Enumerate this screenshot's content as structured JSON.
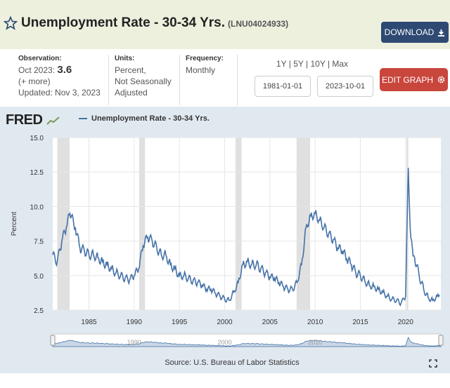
{
  "header": {
    "title": "Unemployment Rate - 30-34 Yrs.",
    "series_id": "(LNU04024933)",
    "download_label": "DOWNLOAD"
  },
  "meta": {
    "observation_label": "Observation:",
    "observation_period": "Oct 2023:",
    "observation_value": "3.6",
    "more_label": "(+ more)",
    "updated": "Updated: Nov 3, 2023",
    "units_label": "Units:",
    "units_line1": "Percent,",
    "units_line2": "Not Seasonally",
    "units_line3": "Adjusted",
    "frequency_label": "Frequency:",
    "frequency_value": "Monthly"
  },
  "controls": {
    "range_1y": "1Y",
    "range_5y": "5Y",
    "range_10y": "10Y",
    "range_max": "Max",
    "sep": "|",
    "start_date": "1981-01-01",
    "end_date": "2023-10-01",
    "edit_label": "EDIT GRAPH"
  },
  "logo": {
    "text": "FRED"
  },
  "source": "Source: U.S. Bureau of Labor Statistics",
  "colors": {
    "series": "#4572a7",
    "recession": "#e0e0e0",
    "panel": "#e1e9f0",
    "download": "#2e4a73",
    "edit": "#c9463d"
  },
  "chart_data": {
    "type": "line",
    "series": [
      {
        "name": "Unemployment Rate - 30-34 Yrs.",
        "x": [
          1981.0,
          1981.5,
          1982.0,
          1982.5,
          1982.9,
          1983.5,
          1984.0,
          1984.5,
          1985.0,
          1985.5,
          1986.0,
          1986.5,
          1987.0,
          1987.5,
          1988.0,
          1988.5,
          1989.0,
          1989.5,
          1990.0,
          1990.5,
          1991.0,
          1991.5,
          1992.0,
          1992.5,
          1993.0,
          1993.5,
          1994.0,
          1994.5,
          1995.0,
          1995.5,
          1996.0,
          1996.5,
          1997.0,
          1997.5,
          1998.0,
          1998.5,
          1999.0,
          1999.5,
          2000.0,
          2000.5,
          2001.0,
          2001.5,
          2002.0,
          2002.5,
          2003.0,
          2003.5,
          2004.0,
          2004.5,
          2005.0,
          2005.5,
          2006.0,
          2006.5,
          2007.0,
          2007.5,
          2008.0,
          2008.5,
          2009.0,
          2009.5,
          2010.0,
          2010.5,
          2011.0,
          2011.5,
          2012.0,
          2012.5,
          2013.0,
          2013.5,
          2014.0,
          2014.5,
          2015.0,
          2015.5,
          2016.0,
          2016.5,
          2017.0,
          2017.5,
          2018.0,
          2018.5,
          2019.0,
          2019.5,
          2020.0,
          2020.3,
          2020.5,
          2020.75,
          2021.0,
          2021.5,
          2022.0,
          2022.5,
          2023.0,
          2023.5,
          2023.75
        ],
        "y": [
          6.5,
          6.0,
          7.5,
          8.5,
          9.5,
          8.5,
          7.0,
          6.8,
          6.5,
          6.5,
          6.3,
          6.0,
          5.8,
          5.5,
          5.2,
          5.0,
          4.8,
          4.7,
          5.0,
          5.5,
          7.2,
          7.8,
          7.5,
          7.0,
          6.5,
          6.5,
          5.8,
          5.5,
          5.0,
          5.0,
          4.8,
          4.6,
          4.5,
          4.3,
          4.0,
          4.0,
          3.7,
          3.5,
          3.3,
          3.2,
          3.8,
          4.5,
          5.8,
          6.0,
          5.8,
          5.8,
          5.5,
          5.2,
          4.9,
          4.8,
          4.5,
          4.2,
          4.0,
          4.0,
          4.5,
          5.8,
          8.5,
          9.3,
          9.5,
          9.0,
          8.5,
          8.0,
          7.6,
          7.0,
          6.8,
          6.2,
          5.8,
          5.2,
          5.0,
          4.6,
          4.3,
          4.2,
          4.0,
          3.8,
          3.5,
          3.3,
          3.2,
          3.0,
          3.5,
          12.8,
          8.5,
          7.0,
          6.3,
          5.0,
          4.0,
          3.4,
          3.2,
          3.5,
          3.6
        ]
      }
    ],
    "recessions": [
      [
        1981.5,
        1982.87
      ],
      [
        1990.55,
        1991.2
      ],
      [
        2001.2,
        2001.87
      ],
      [
        2007.95,
        2009.45
      ],
      [
        2020.1,
        2020.3
      ]
    ],
    "xlim": [
      1981.0,
      2023.9
    ],
    "ylim": [
      2.5,
      15.0
    ],
    "yticks": [
      2.5,
      5.0,
      7.5,
      10.0,
      12.5,
      15.0
    ],
    "ytick_labels": [
      "2.5",
      "5.0",
      "7.5",
      "10.0",
      "12.5",
      "15.0"
    ],
    "xticks": [
      1985,
      1990,
      1995,
      2000,
      2005,
      2010,
      2015,
      2020
    ],
    "xtick_labels": [
      "1985",
      "1990",
      "1995",
      "2000",
      "2005",
      "2010",
      "2015",
      "2020"
    ],
    "ylabel": "Percent",
    "xlabel": "",
    "navigator_labels": [
      "1990",
      "2000",
      "2010"
    ],
    "grid": true
  }
}
